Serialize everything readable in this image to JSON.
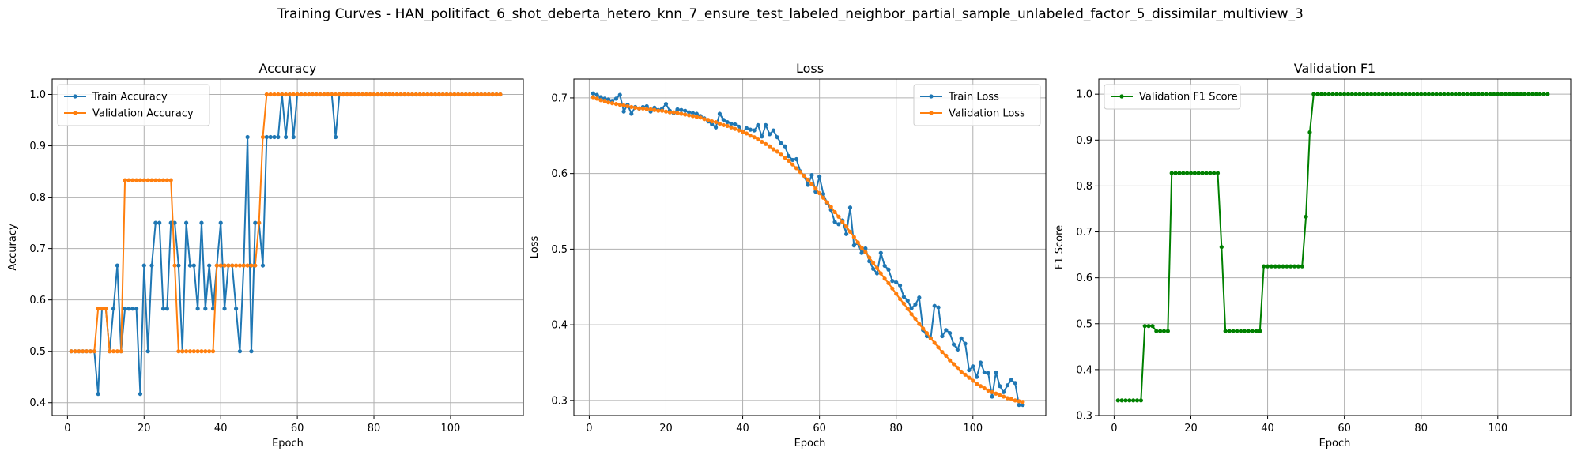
{
  "figure": {
    "title": "Training Curves - HAN_politifact_6_shot_deberta_hetero_knn_7_ensure_test_labeled_neighbor_partial_sample_unlabeled_factor_5_dissimilar_multiview_3"
  },
  "colors": {
    "blue": "#1f77b4",
    "orange": "#ff7f0e",
    "green": "#008000",
    "grid": "#b0b0b0"
  },
  "chart_data": [
    {
      "type": "line",
      "title": "Accuracy",
      "xlabel": "Epoch",
      "ylabel": "Accuracy",
      "xlim": [
        -4,
        119
      ],
      "ylim": [
        0.375,
        1.03
      ],
      "xticks": [
        0,
        20,
        40,
        60,
        80,
        100
      ],
      "yticks": [
        0.4,
        0.5,
        0.6,
        0.7,
        0.8,
        0.9,
        1.0
      ],
      "ytick_labels": [
        "0.4",
        "0.5",
        "0.6",
        "0.7",
        "0.8",
        "0.9",
        "1.0"
      ],
      "grid": true,
      "legend": "upper left",
      "x": [
        1,
        2,
        3,
        4,
        5,
        6,
        7,
        8,
        9,
        10,
        11,
        12,
        13,
        14,
        15,
        16,
        17,
        18,
        19,
        20,
        21,
        22,
        23,
        24,
        25,
        26,
        27,
        28,
        29,
        30,
        31,
        32,
        33,
        34,
        35,
        36,
        37,
        38,
        39,
        40,
        41,
        42,
        43,
        44,
        45,
        46,
        47,
        48,
        49,
        50,
        51,
        52,
        53,
        54,
        55,
        56,
        57,
        58,
        59,
        60,
        61,
        62,
        63,
        64,
        65,
        66,
        67,
        68,
        69,
        70,
        71,
        72,
        73,
        74,
        75,
        76,
        77,
        78,
        79,
        80,
        81,
        82,
        83,
        84,
        85,
        86,
        87,
        88,
        89,
        90,
        91,
        92,
        93,
        94,
        95,
        96,
        97,
        98,
        99,
        100,
        101,
        102,
        103,
        104,
        105,
        106,
        107,
        108,
        109,
        110,
        111,
        112,
        113
      ],
      "series": [
        {
          "name": "Train Accuracy",
          "color": "#1f77b4",
          "values": [
            0.5,
            0.5,
            0.5,
            0.5,
            0.5,
            0.5,
            0.5,
            0.417,
            0.583,
            0.583,
            0.5,
            0.583,
            0.667,
            0.5,
            0.583,
            0.583,
            0.583,
            0.583,
            0.417,
            0.667,
            0.5,
            0.667,
            0.75,
            0.75,
            0.583,
            0.583,
            0.75,
            0.75,
            0.667,
            0.5,
            0.75,
            0.667,
            0.667,
            0.583,
            0.75,
            0.583,
            0.667,
            0.583,
            0.667,
            0.75,
            0.583,
            0.667,
            0.667,
            0.583,
            0.5,
            0.667,
            0.917,
            0.5,
            0.75,
            0.75,
            0.667,
            0.917,
            0.917,
            0.917,
            0.917,
            1.0,
            0.917,
            1.0,
            0.917,
            1.0,
            1.0,
            1.0,
            1.0,
            1.0,
            1.0,
            1.0,
            1.0,
            1.0,
            1.0,
            0.917,
            1.0,
            1.0,
            1.0,
            1.0,
            1.0,
            1.0,
            1.0,
            1.0,
            1.0,
            1.0,
            1.0,
            1.0,
            1.0,
            1.0,
            1.0,
            1.0,
            1.0,
            1.0,
            1.0,
            1.0,
            1.0,
            1.0,
            1.0,
            1.0,
            1.0,
            1.0,
            1.0,
            1.0,
            1.0,
            1.0,
            1.0,
            1.0,
            1.0,
            1.0,
            1.0,
            1.0,
            1.0,
            1.0,
            1.0,
            1.0,
            1.0,
            1.0,
            1.0
          ]
        },
        {
          "name": "Validation Accuracy",
          "color": "#ff7f0e",
          "values": [
            0.5,
            0.5,
            0.5,
            0.5,
            0.5,
            0.5,
            0.5,
            0.583,
            0.583,
            0.583,
            0.5,
            0.5,
            0.5,
            0.5,
            0.833,
            0.833,
            0.833,
            0.833,
            0.833,
            0.833,
            0.833,
            0.833,
            0.833,
            0.833,
            0.833,
            0.833,
            0.833,
            0.667,
            0.5,
            0.5,
            0.5,
            0.5,
            0.5,
            0.5,
            0.5,
            0.5,
            0.5,
            0.5,
            0.667,
            0.667,
            0.667,
            0.667,
            0.667,
            0.667,
            0.667,
            0.667,
            0.667,
            0.667,
            0.667,
            0.75,
            0.917,
            1.0,
            1.0,
            1.0,
            1.0,
            1.0,
            1.0,
            1.0,
            1.0,
            1.0,
            1.0,
            1.0,
            1.0,
            1.0,
            1.0,
            1.0,
            1.0,
            1.0,
            1.0,
            1.0,
            1.0,
            1.0,
            1.0,
            1.0,
            1.0,
            1.0,
            1.0,
            1.0,
            1.0,
            1.0,
            1.0,
            1.0,
            1.0,
            1.0,
            1.0,
            1.0,
            1.0,
            1.0,
            1.0,
            1.0,
            1.0,
            1.0,
            1.0,
            1.0,
            1.0,
            1.0,
            1.0,
            1.0,
            1.0,
            1.0,
            1.0,
            1.0,
            1.0,
            1.0,
            1.0,
            1.0,
            1.0,
            1.0,
            1.0,
            1.0,
            1.0,
            1.0,
            1.0
          ]
        }
      ]
    },
    {
      "type": "line",
      "title": "Loss",
      "xlabel": "Epoch",
      "ylabel": "Loss",
      "xlim": [
        -4,
        119
      ],
      "ylim": [
        0.28,
        0.725
      ],
      "xticks": [
        0,
        20,
        40,
        60,
        80,
        100
      ],
      "yticks": [
        0.3,
        0.4,
        0.5,
        0.6,
        0.7
      ],
      "ytick_labels": [
        "0.3",
        "0.4",
        "0.5",
        "0.6",
        "0.7"
      ],
      "grid": true,
      "legend": "upper right",
      "x": [
        1,
        2,
        3,
        4,
        5,
        6,
        7,
        8,
        9,
        10,
        11,
        12,
        13,
        14,
        15,
        16,
        17,
        18,
        19,
        20,
        21,
        22,
        23,
        24,
        25,
        26,
        27,
        28,
        29,
        30,
        31,
        32,
        33,
        34,
        35,
        36,
        37,
        38,
        39,
        40,
        41,
        42,
        43,
        44,
        45,
        46,
        47,
        48,
        49,
        50,
        51,
        52,
        53,
        54,
        55,
        56,
        57,
        58,
        59,
        60,
        61,
        62,
        63,
        64,
        65,
        66,
        67,
        68,
        69,
        70,
        71,
        72,
        73,
        74,
        75,
        76,
        77,
        78,
        79,
        80,
        81,
        82,
        83,
        84,
        85,
        86,
        87,
        88,
        89,
        90,
        91,
        92,
        93,
        94,
        95,
        96,
        97,
        98,
        99,
        100,
        101,
        102,
        103,
        104,
        105,
        106,
        107,
        108,
        109,
        110,
        111,
        112,
        113
      ],
      "series": [
        {
          "name": "Train Loss",
          "color": "#1f77b4",
          "values": [
            0.706,
            0.704,
            0.701,
            0.699,
            0.698,
            0.696,
            0.699,
            0.704,
            0.682,
            0.691,
            0.679,
            0.688,
            0.686,
            0.688,
            0.689,
            0.682,
            0.687,
            0.684,
            0.686,
            0.692,
            0.683,
            0.68,
            0.685,
            0.684,
            0.683,
            0.681,
            0.68,
            0.679,
            0.676,
            0.673,
            0.669,
            0.665,
            0.661,
            0.679,
            0.671,
            0.668,
            0.666,
            0.665,
            0.662,
            0.655,
            0.66,
            0.658,
            0.657,
            0.664,
            0.649,
            0.664,
            0.652,
            0.657,
            0.648,
            0.64,
            0.636,
            0.623,
            0.618,
            0.619,
            0.603,
            0.597,
            0.585,
            0.598,
            0.576,
            0.596,
            0.573,
            0.561,
            0.552,
            0.536,
            0.533,
            0.538,
            0.52,
            0.555,
            0.505,
            0.508,
            0.495,
            0.501,
            0.484,
            0.474,
            0.468,
            0.495,
            0.478,
            0.473,
            0.458,
            0.456,
            0.452,
            0.437,
            0.432,
            0.422,
            0.427,
            0.436,
            0.393,
            0.385,
            0.382,
            0.425,
            0.423,
            0.385,
            0.393,
            0.389,
            0.374,
            0.367,
            0.382,
            0.375,
            0.34,
            0.345,
            0.331,
            0.35,
            0.337,
            0.336,
            0.305,
            0.337,
            0.319,
            0.311,
            0.32,
            0.327,
            0.323,
            0.294,
            0.294
          ]
        },
        {
          "name": "Validation Loss",
          "color": "#ff7f0e",
          "values": [
            0.701,
            0.699,
            0.697,
            0.696,
            0.694,
            0.693,
            0.692,
            0.691,
            0.69,
            0.689,
            0.688,
            0.687,
            0.686,
            0.686,
            0.685,
            0.685,
            0.684,
            0.683,
            0.683,
            0.682,
            0.681,
            0.681,
            0.68,
            0.679,
            0.678,
            0.677,
            0.676,
            0.675,
            0.674,
            0.672,
            0.671,
            0.669,
            0.668,
            0.666,
            0.664,
            0.663,
            0.661,
            0.659,
            0.657,
            0.655,
            0.653,
            0.65,
            0.648,
            0.645,
            0.642,
            0.639,
            0.636,
            0.632,
            0.629,
            0.625,
            0.621,
            0.617,
            0.612,
            0.607,
            0.602,
            0.597,
            0.592,
            0.586,
            0.58,
            0.574,
            0.568,
            0.562,
            0.556,
            0.549,
            0.543,
            0.536,
            0.53,
            0.523,
            0.516,
            0.509,
            0.502,
            0.496,
            0.489,
            0.482,
            0.475,
            0.468,
            0.461,
            0.455,
            0.448,
            0.441,
            0.434,
            0.428,
            0.421,
            0.414,
            0.408,
            0.401,
            0.395,
            0.389,
            0.382,
            0.376,
            0.37,
            0.364,
            0.359,
            0.353,
            0.348,
            0.343,
            0.338,
            0.334,
            0.33,
            0.326,
            0.322,
            0.319,
            0.316,
            0.313,
            0.311,
            0.309,
            0.307,
            0.305,
            0.303,
            0.302,
            0.3,
            0.299,
            0.298
          ]
        }
      ]
    },
    {
      "type": "line",
      "title": "Validation F1",
      "xlabel": "Epoch",
      "ylabel": "F1 Score",
      "xlim": [
        -4,
        119
      ],
      "ylim": [
        0.3,
        1.033
      ],
      "xticks": [
        0,
        20,
        40,
        60,
        80,
        100
      ],
      "yticks": [
        0.3,
        0.4,
        0.5,
        0.6,
        0.7,
        0.8,
        0.9,
        1.0
      ],
      "ytick_labels": [
        "0.3",
        "0.4",
        "0.5",
        "0.6",
        "0.7",
        "0.8",
        "0.9",
        "1.0"
      ],
      "grid": true,
      "legend": "upper left",
      "x": [
        1,
        2,
        3,
        4,
        5,
        6,
        7,
        8,
        9,
        10,
        11,
        12,
        13,
        14,
        15,
        16,
        17,
        18,
        19,
        20,
        21,
        22,
        23,
        24,
        25,
        26,
        27,
        28,
        29,
        30,
        31,
        32,
        33,
        34,
        35,
        36,
        37,
        38,
        39,
        40,
        41,
        42,
        43,
        44,
        45,
        46,
        47,
        48,
        49,
        50,
        51,
        52,
        53,
        54,
        55,
        56,
        57,
        58,
        59,
        60,
        61,
        62,
        63,
        64,
        65,
        66,
        67,
        68,
        69,
        70,
        71,
        72,
        73,
        74,
        75,
        76,
        77,
        78,
        79,
        80,
        81,
        82,
        83,
        84,
        85,
        86,
        87,
        88,
        89,
        90,
        91,
        92,
        93,
        94,
        95,
        96,
        97,
        98,
        99,
        100,
        101,
        102,
        103,
        104,
        105,
        106,
        107,
        108,
        109,
        110,
        111,
        112,
        113
      ],
      "series": [
        {
          "name": "Validation F1 Score",
          "color": "#008000",
          "values": [
            0.333,
            0.333,
            0.333,
            0.333,
            0.333,
            0.333,
            0.333,
            0.495,
            0.495,
            0.495,
            0.484,
            0.484,
            0.484,
            0.484,
            0.828,
            0.828,
            0.828,
            0.828,
            0.828,
            0.828,
            0.828,
            0.828,
            0.828,
            0.828,
            0.828,
            0.828,
            0.828,
            0.667,
            0.484,
            0.484,
            0.484,
            0.484,
            0.484,
            0.484,
            0.484,
            0.484,
            0.484,
            0.484,
            0.625,
            0.625,
            0.625,
            0.625,
            0.625,
            0.625,
            0.625,
            0.625,
            0.625,
            0.625,
            0.625,
            0.733,
            0.917,
            1.0,
            1.0,
            1.0,
            1.0,
            1.0,
            1.0,
            1.0,
            1.0,
            1.0,
            1.0,
            1.0,
            1.0,
            1.0,
            1.0,
            1.0,
            1.0,
            1.0,
            1.0,
            1.0,
            1.0,
            1.0,
            1.0,
            1.0,
            1.0,
            1.0,
            1.0,
            1.0,
            1.0,
            1.0,
            1.0,
            1.0,
            1.0,
            1.0,
            1.0,
            1.0,
            1.0,
            1.0,
            1.0,
            1.0,
            1.0,
            1.0,
            1.0,
            1.0,
            1.0,
            1.0,
            1.0,
            1.0,
            1.0,
            1.0,
            1.0,
            1.0,
            1.0,
            1.0,
            1.0,
            1.0,
            1.0,
            1.0,
            1.0,
            1.0,
            1.0,
            1.0,
            1.0
          ]
        }
      ]
    }
  ]
}
